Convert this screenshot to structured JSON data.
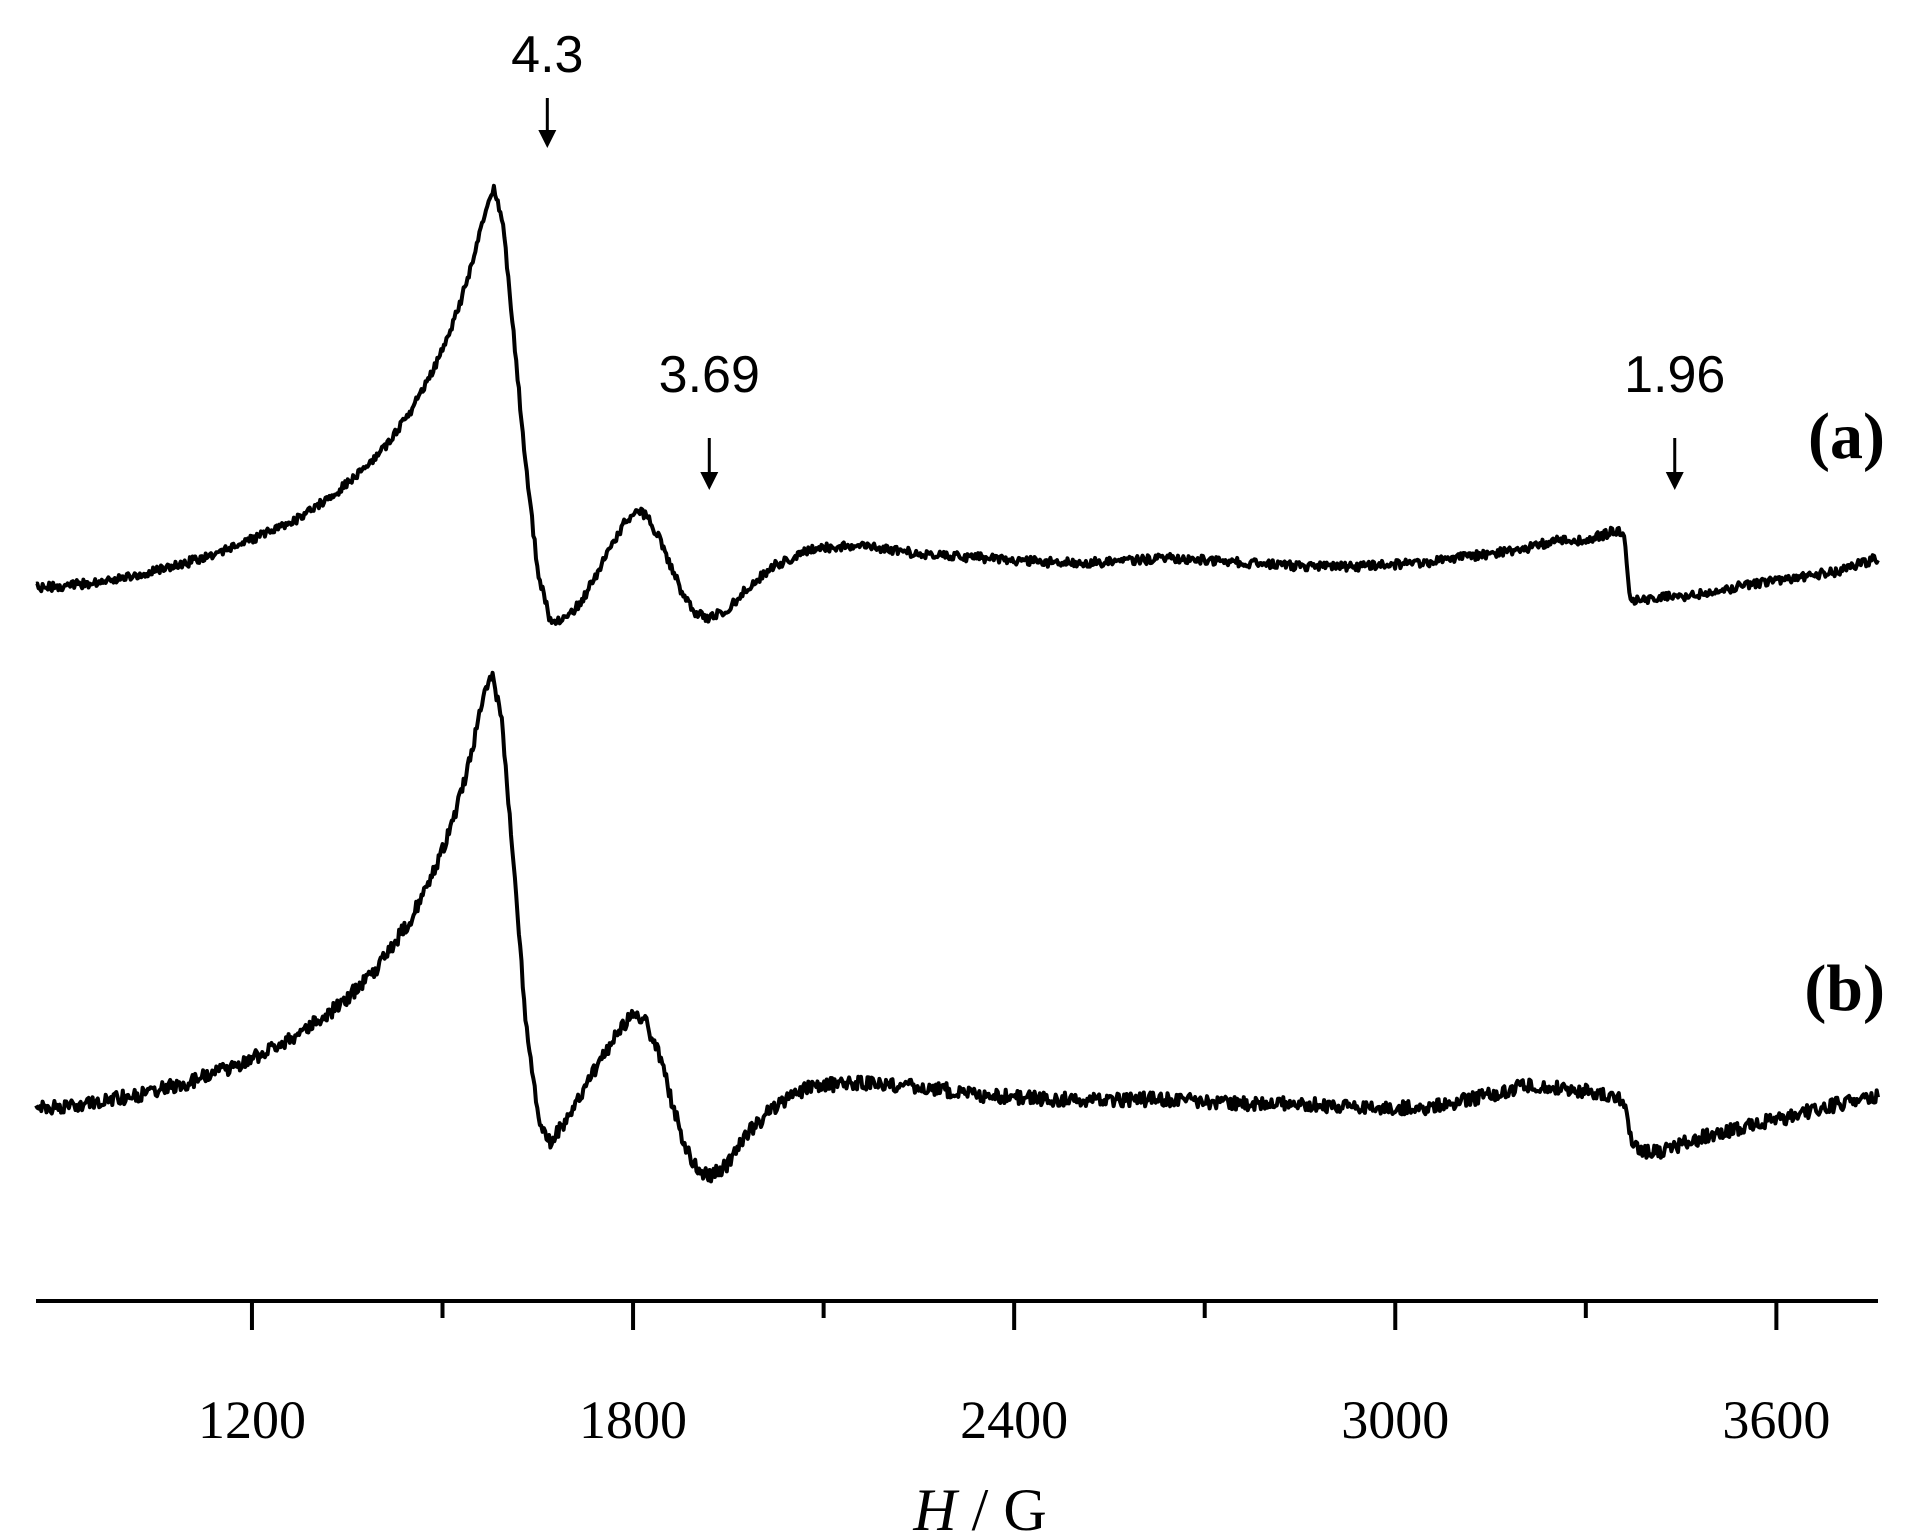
{
  "chart_data": {
    "type": "line",
    "title": "",
    "xlabel_italic": "H",
    "xlabel_rest": " / G",
    "ylabel": "",
    "xlim": [
      860,
      3760
    ],
    "x_ticks_major": [
      1200,
      1800,
      2400,
      3000,
      3600
    ],
    "x_ticks_major_labels": [
      "1200",
      "1800",
      "2400",
      "3000",
      "3600"
    ],
    "x_ticks_minor": [
      1500,
      2100,
      2700,
      3300
    ],
    "grid": false,
    "legend": "none",
    "line_color": "#000000",
    "series": [
      {
        "name": "(a)",
        "x": [
          860,
          940,
          1020,
          1100,
          1180,
          1260,
          1340,
          1400,
          1450,
          1490,
          1520,
          1540,
          1555,
          1568,
          1580,
          1595,
          1610,
          1630,
          1650,
          1670,
          1695,
          1720,
          1745,
          1770,
          1790,
          1805,
          1820,
          1840,
          1860,
          1880,
          1900,
          1920,
          1950,
          1980,
          2020,
          2080,
          2150,
          2250,
          2350,
          2450,
          2550,
          2650,
          2750,
          2850,
          2950,
          3050,
          3150,
          3200,
          3250,
          3300,
          3340,
          3360,
          3368,
          3376,
          3390,
          3420,
          3460,
          3500,
          3560,
          3620,
          3700,
          3760
        ],
        "y": [
          0.0,
          0.01,
          0.03,
          0.06,
          0.1,
          0.15,
          0.23,
          0.31,
          0.41,
          0.52,
          0.63,
          0.72,
          0.81,
          0.88,
          0.93,
          0.85,
          0.62,
          0.3,
          0.04,
          -0.08,
          -0.07,
          -0.03,
          0.04,
          0.11,
          0.16,
          0.18,
          0.17,
          0.12,
          0.05,
          -0.02,
          -0.06,
          -0.07,
          -0.05,
          0.0,
          0.05,
          0.09,
          0.1,
          0.08,
          0.07,
          0.06,
          0.06,
          0.07,
          0.06,
          0.05,
          0.05,
          0.06,
          0.08,
          0.09,
          0.11,
          0.11,
          0.13,
          0.13,
          -0.01,
          -0.03,
          -0.03,
          -0.02,
          -0.02,
          -0.01,
          0.01,
          0.02,
          0.04,
          0.07
        ]
      },
      {
        "name": "(b)",
        "x": [
          860,
          940,
          1020,
          1100,
          1180,
          1260,
          1340,
          1400,
          1450,
          1490,
          1520,
          1540,
          1555,
          1568,
          1580,
          1595,
          1610,
          1630,
          1650,
          1670,
          1695,
          1720,
          1745,
          1770,
          1790,
          1805,
          1820,
          1840,
          1860,
          1880,
          1900,
          1920,
          1950,
          1980,
          2020,
          2080,
          2150,
          2250,
          2350,
          2450,
          2550,
          2650,
          2750,
          2850,
          2950,
          3050,
          3150,
          3200,
          3250,
          3300,
          3340,
          3360,
          3368,
          3376,
          3390,
          3420,
          3460,
          3500,
          3560,
          3620,
          3700,
          3760
        ],
        "y": [
          0.0,
          0.01,
          0.03,
          0.06,
          0.1,
          0.16,
          0.24,
          0.33,
          0.44,
          0.56,
          0.68,
          0.79,
          0.89,
          0.97,
          1.0,
          0.88,
          0.6,
          0.22,
          -0.02,
          -0.08,
          -0.03,
          0.04,
          0.1,
          0.16,
          0.2,
          0.22,
          0.2,
          0.13,
          0.02,
          -0.08,
          -0.14,
          -0.16,
          -0.13,
          -0.06,
          0.0,
          0.05,
          0.06,
          0.05,
          0.03,
          0.02,
          0.02,
          0.02,
          0.01,
          0.01,
          0.0,
          0.0,
          0.03,
          0.05,
          0.05,
          0.04,
          0.03,
          0.02,
          -0.06,
          -0.09,
          -0.1,
          -0.1,
          -0.08,
          -0.06,
          -0.04,
          -0.02,
          0.01,
          0.03
        ]
      }
    ],
    "annotations": [
      {
        "text": "4.3",
        "x": 1665
      },
      {
        "text": "3.69",
        "x": 1920
      },
      {
        "text": "1.96",
        "x": 3440
      }
    ]
  }
}
